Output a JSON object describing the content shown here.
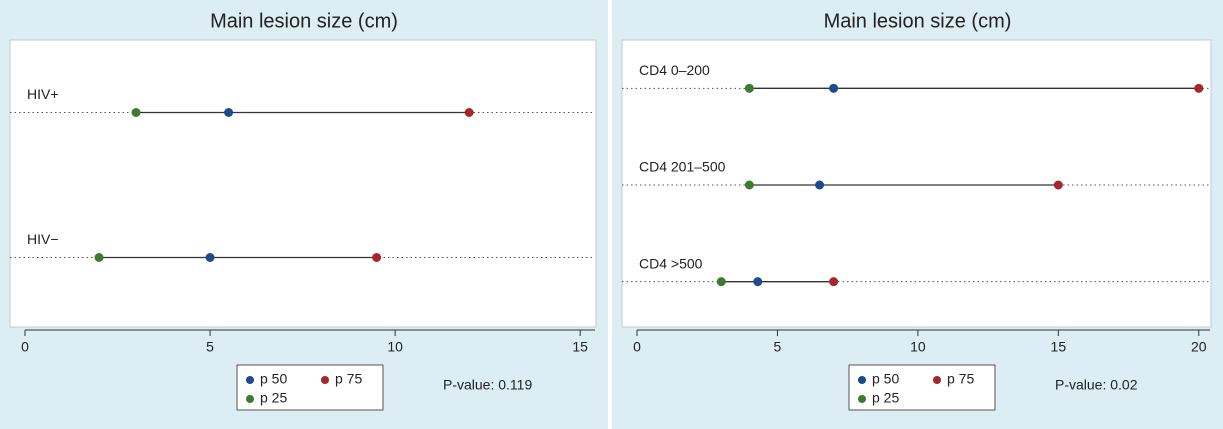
{
  "chart_data": [
    {
      "type": "dot",
      "title": "Main lesion size (cm)",
      "categories": [
        "HIV+",
        "HIV−"
      ],
      "series": [
        {
          "name": "p 50",
          "color": "#1d4a8a",
          "values": [
            5.5,
            5
          ]
        },
        {
          "name": "p 75",
          "color": "#a4272c",
          "values": [
            12,
            9.5
          ]
        },
        {
          "name": "p 25",
          "color": "#3e7b2f",
          "values": [
            3,
            2
          ]
        }
      ],
      "xlim": [
        0,
        15.4
      ],
      "xticks": [
        0,
        5,
        10,
        15
      ],
      "annotation": "P-value: 0.119"
    },
    {
      "type": "dot",
      "title": "Main lesion size (cm)",
      "categories": [
        "CD4 0–200",
        "CD4 201–500",
        "CD4 >500"
      ],
      "series": [
        {
          "name": "p 50",
          "color": "#1d4a8a",
          "values": [
            7,
            6.5,
            4.3
          ]
        },
        {
          "name": "p 75",
          "color": "#a4272c",
          "values": [
            20,
            15,
            7
          ]
        },
        {
          "name": "p 25",
          "color": "#3e7b2f",
          "values": [
            4,
            4,
            3
          ]
        }
      ],
      "xlim": [
        0,
        20.4
      ],
      "xticks": [
        0,
        5,
        10,
        15,
        20
      ],
      "annotation": "P-value: 0.02"
    }
  ]
}
